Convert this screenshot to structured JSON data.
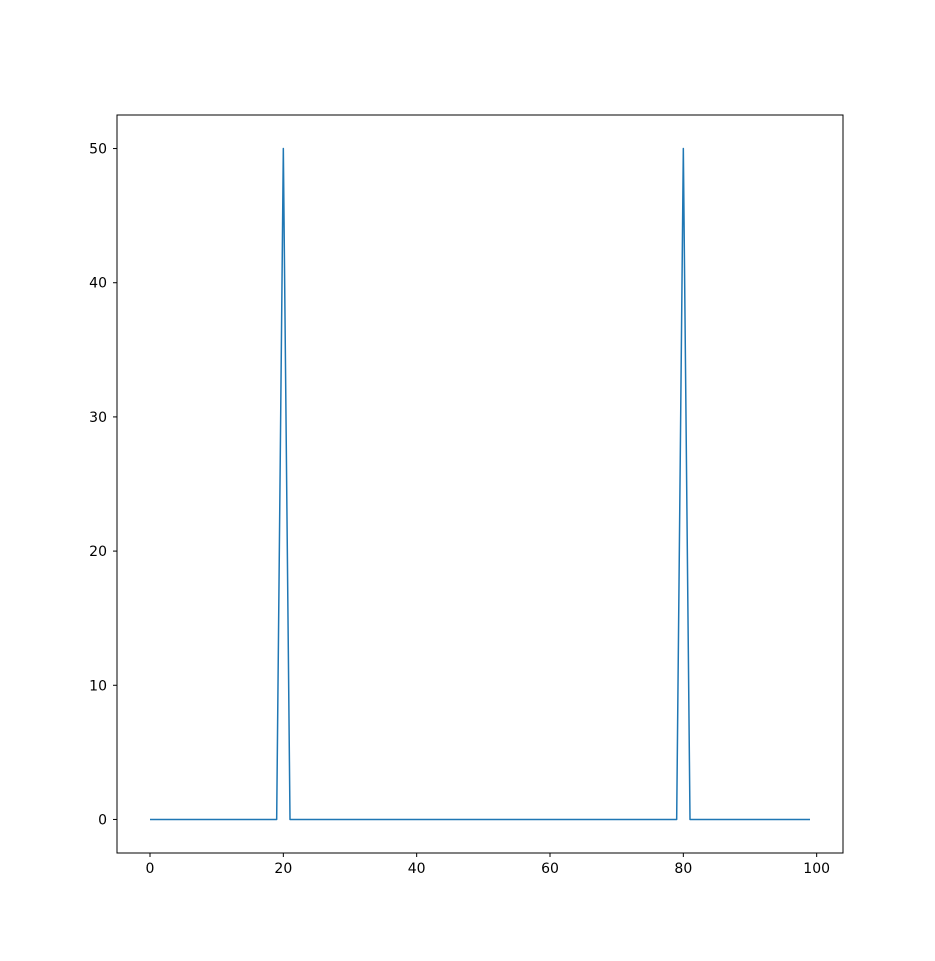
{
  "figure": {
    "background_color": "#ffffff",
    "frame_color": "#000000",
    "tick_color": "#000000",
    "tick_label_color": "#000000"
  },
  "chart_data": {
    "type": "line",
    "title": "",
    "xlabel": "",
    "ylabel": "",
    "legend": null,
    "grid": false,
    "line_color": "#1f77b4",
    "line_width": 1.5,
    "x_start": 0,
    "x_end": 99,
    "n_points": 100,
    "baseline_value": 0,
    "spikes": [
      {
        "x": 20,
        "y": 50
      },
      {
        "x": 80,
        "y": 50
      }
    ],
    "values": [
      0,
      0,
      0,
      0,
      0,
      0,
      0,
      0,
      0,
      0,
      0,
      0,
      0,
      0,
      0,
      0,
      0,
      0,
      0,
      0,
      50,
      0,
      0,
      0,
      0,
      0,
      0,
      0,
      0,
      0,
      0,
      0,
      0,
      0,
      0,
      0,
      0,
      0,
      0,
      0,
      0,
      0,
      0,
      0,
      0,
      0,
      0,
      0,
      0,
      0,
      0,
      0,
      0,
      0,
      0,
      0,
      0,
      0,
      0,
      0,
      0,
      0,
      0,
      0,
      0,
      0,
      0,
      0,
      0,
      0,
      0,
      0,
      0,
      0,
      0,
      0,
      0,
      0,
      0,
      0,
      50,
      0,
      0,
      0,
      0,
      0,
      0,
      0,
      0,
      0,
      0,
      0,
      0,
      0,
      0,
      0,
      0,
      0,
      0,
      0
    ],
    "x_ticks": [
      0,
      20,
      40,
      60,
      80,
      100
    ],
    "y_ticks": [
      0,
      10,
      20,
      30,
      40,
      50
    ],
    "xlim": [
      -4.95,
      103.95
    ],
    "ylim": [
      -2.5,
      52.5
    ]
  }
}
